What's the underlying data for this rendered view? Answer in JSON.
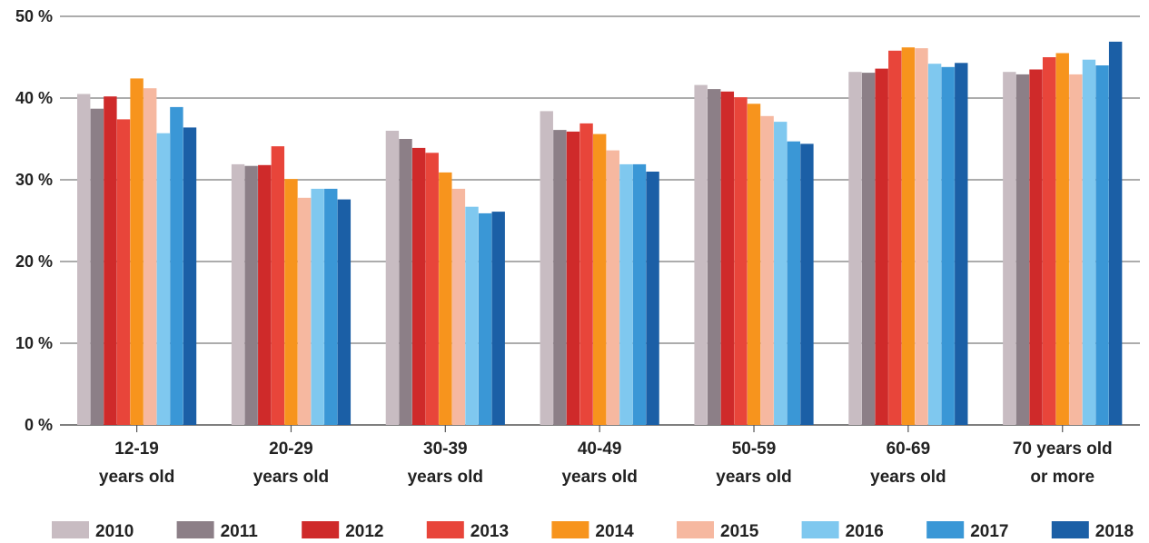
{
  "chart_data": {
    "type": "bar",
    "title": "",
    "xlabel": "",
    "ylabel": "",
    "ylim": [
      0,
      50
    ],
    "yticks": [
      0,
      10,
      20,
      30,
      40,
      50
    ],
    "ytick_suffix": " %",
    "grid": true,
    "legend_position": "bottom",
    "categories": [
      [
        "12-19",
        "years old"
      ],
      [
        "20-29",
        "years old"
      ],
      [
        "30-39",
        "years old"
      ],
      [
        "40-49",
        "years old"
      ],
      [
        "50-59",
        "years old"
      ],
      [
        "60-69",
        "years old"
      ],
      [
        "70 years old",
        "or more"
      ]
    ],
    "series": [
      {
        "name": "2010",
        "color": "#c8bcc2",
        "values": [
          40.5,
          31.9,
          36.0,
          38.4,
          41.6,
          43.2,
          43.2
        ]
      },
      {
        "name": "2011",
        "color": "#8c7f87",
        "values": [
          38.7,
          31.7,
          35.0,
          36.1,
          41.1,
          43.1,
          42.9
        ]
      },
      {
        "name": "2012",
        "color": "#cf2a2a",
        "values": [
          40.2,
          31.8,
          33.9,
          35.9,
          40.8,
          43.6,
          43.5
        ]
      },
      {
        "name": "2013",
        "color": "#e8453a",
        "values": [
          37.4,
          34.1,
          33.3,
          36.9,
          40.1,
          45.8,
          45.0
        ]
      },
      {
        "name": "2014",
        "color": "#f7941d",
        "values": [
          42.4,
          30.1,
          30.9,
          35.6,
          39.3,
          46.2,
          45.5
        ]
      },
      {
        "name": "2015",
        "color": "#f6b8a0",
        "values": [
          41.2,
          27.8,
          28.9,
          33.6,
          37.8,
          46.1,
          42.9
        ]
      },
      {
        "name": "2016",
        "color": "#7fc8ef",
        "values": [
          35.7,
          28.9,
          26.7,
          31.9,
          37.1,
          44.2,
          44.7
        ]
      },
      {
        "name": "2017",
        "color": "#3a97d6",
        "values": [
          38.9,
          28.9,
          25.9,
          31.9,
          34.7,
          43.8,
          44.0
        ]
      },
      {
        "name": "2018",
        "color": "#1b5fa6",
        "values": [
          36.4,
          27.6,
          26.1,
          31.0,
          34.4,
          44.3,
          46.9
        ]
      }
    ]
  }
}
